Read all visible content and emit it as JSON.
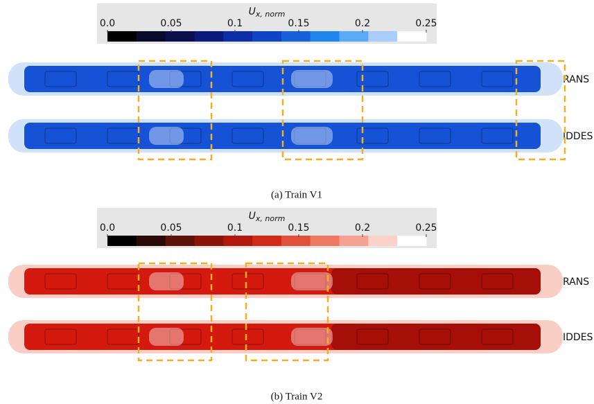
{
  "panels": [
    {
      "colorbar": {
        "symbol": "U",
        "subscript": "x, norm",
        "range": [
          0,
          0.25
        ],
        "ticks": [
          {
            "value": 0,
            "label": "0.0"
          },
          0.05,
          0.1,
          0.15,
          0.2,
          0.25
        ],
        "colors": [
          "#000000",
          "#0a0a2a",
          "#0b0f4d",
          "#0a1a7a",
          "#0c2ea6",
          "#0f44c4",
          "#1660d8",
          "#1f86ee",
          "#5aaaf5",
          "#a9cdf8",
          "#ffffff"
        ]
      },
      "rows": [
        "RANS",
        "IDDES"
      ],
      "caption": "(a) Train V1"
    },
    {
      "colorbar": {
        "symbol": "U",
        "subscript": "x, norm",
        "range": [
          0,
          0.25
        ],
        "ticks": [
          {
            "value": 0,
            "label": "0.0"
          },
          0.05,
          0.1,
          0.15,
          0.2,
          0.25
        ],
        "colors": [
          "#000000",
          "#2a0a06",
          "#5c1208",
          "#8a1408",
          "#b3180c",
          "#d02a18",
          "#e0503a",
          "#ef7a64",
          "#f5a292",
          "#fbd2c8",
          "#ffffff"
        ]
      },
      "rows": [
        "RANS",
        "IDDES"
      ],
      "caption": "(b) Train V2"
    }
  ]
}
